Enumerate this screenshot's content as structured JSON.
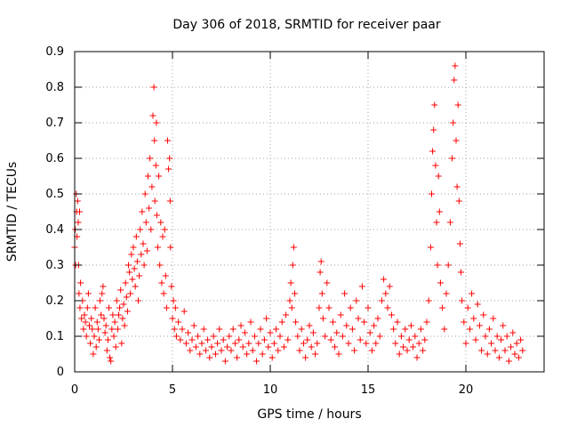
{
  "chart_data": {
    "type": "scatter",
    "title": "Day 306 of 2018, SRMTID for receiver paar",
    "xlabel": "GPS time / hours",
    "ylabel": "SRMTID / TECUs",
    "xlim": [
      0,
      24
    ],
    "ylim": [
      0,
      0.9
    ],
    "x_ticks": [
      0,
      5,
      10,
      15,
      20
    ],
    "x_tick_labels": [
      "0",
      "5",
      "10",
      "15",
      "20"
    ],
    "y_ticks": [
      0,
      0.1,
      0.2,
      0.3,
      0.4,
      0.5,
      0.6,
      0.7,
      0.8,
      0.9
    ],
    "y_tick_labels": [
      "0",
      "0.1",
      "0.2",
      "0.3",
      "0.4",
      "0.5",
      "0.6",
      "0.7",
      "0.8",
      "0.9"
    ],
    "grid": true,
    "marker": "+",
    "series_color": "#ff0000",
    "series": [
      {
        "name": "SRMTID",
        "points": [
          [
            0.0,
            0.35
          ],
          [
            0.03,
            0.4
          ],
          [
            0.05,
            0.3
          ],
          [
            0.08,
            0.5
          ],
          [
            0.1,
            0.45
          ],
          [
            0.12,
            0.38
          ],
          [
            0.15,
            0.48
          ],
          [
            0.18,
            0.42
          ],
          [
            0.2,
            0.3
          ],
          [
            0.22,
            0.22
          ],
          [
            0.25,
            0.45
          ],
          [
            0.27,
            0.18
          ],
          [
            0.3,
            0.25
          ],
          [
            0.35,
            0.15
          ],
          [
            0.4,
            0.2
          ],
          [
            0.45,
            0.12
          ],
          [
            0.5,
            0.16
          ],
          [
            0.55,
            0.14
          ],
          [
            0.6,
            0.1
          ],
          [
            0.65,
            0.18
          ],
          [
            0.7,
            0.22
          ],
          [
            0.75,
            0.13
          ],
          [
            0.8,
            0.08
          ],
          [
            0.85,
            0.15
          ],
          [
            0.9,
            0.12
          ],
          [
            0.95,
            0.05
          ],
          [
            1.0,
            0.1
          ],
          [
            1.05,
            0.18
          ],
          [
            1.1,
            0.07
          ],
          [
            1.15,
            0.14
          ],
          [
            1.2,
            0.12
          ],
          [
            1.25,
            0.09
          ],
          [
            1.3,
            0.2
          ],
          [
            1.35,
            0.16
          ],
          [
            1.4,
            0.22
          ],
          [
            1.45,
            0.24
          ],
          [
            1.5,
            0.15
          ],
          [
            1.55,
            0.11
          ],
          [
            1.6,
            0.13
          ],
          [
            1.65,
            0.06
          ],
          [
            1.7,
            0.09
          ],
          [
            1.75,
            0.18
          ],
          [
            1.8,
            0.04
          ],
          [
            1.85,
            0.03
          ],
          [
            1.9,
            0.12
          ],
          [
            1.95,
            0.16
          ],
          [
            2.0,
            0.1
          ],
          [
            2.05,
            0.14
          ],
          [
            2.1,
            0.07
          ],
          [
            2.15,
            0.2
          ],
          [
            2.2,
            0.12
          ],
          [
            2.25,
            0.16
          ],
          [
            2.3,
            0.18
          ],
          [
            2.35,
            0.23
          ],
          [
            2.4,
            0.08
          ],
          [
            2.45,
            0.15
          ],
          [
            2.5,
            0.19
          ],
          [
            2.55,
            0.13
          ],
          [
            2.6,
            0.25
          ],
          [
            2.65,
            0.21
          ],
          [
            2.7,
            0.17
          ],
          [
            2.75,
            0.3
          ],
          [
            2.8,
            0.28
          ],
          [
            2.85,
            0.22
          ],
          [
            2.9,
            0.33
          ],
          [
            2.95,
            0.26
          ],
          [
            3.0,
            0.35
          ],
          [
            3.05,
            0.29
          ],
          [
            3.1,
            0.24
          ],
          [
            3.15,
            0.38
          ],
          [
            3.2,
            0.31
          ],
          [
            3.25,
            0.2
          ],
          [
            3.3,
            0.27
          ],
          [
            3.35,
            0.4
          ],
          [
            3.4,
            0.33
          ],
          [
            3.45,
            0.45
          ],
          [
            3.5,
            0.36
          ],
          [
            3.55,
            0.3
          ],
          [
            3.6,
            0.5
          ],
          [
            3.65,
            0.42
          ],
          [
            3.7,
            0.34
          ],
          [
            3.75,
            0.55
          ],
          [
            3.8,
            0.46
          ],
          [
            3.85,
            0.6
          ],
          [
            3.9,
            0.4
          ],
          [
            3.95,
            0.52
          ],
          [
            4.0,
            0.72
          ],
          [
            4.05,
            0.8
          ],
          [
            4.08,
            0.65
          ],
          [
            4.1,
            0.48
          ],
          [
            4.15,
            0.58
          ],
          [
            4.18,
            0.7
          ],
          [
            4.2,
            0.44
          ],
          [
            4.25,
            0.35
          ],
          [
            4.3,
            0.55
          ],
          [
            4.35,
            0.3
          ],
          [
            4.4,
            0.42
          ],
          [
            4.45,
            0.25
          ],
          [
            4.5,
            0.38
          ],
          [
            4.55,
            0.22
          ],
          [
            4.6,
            0.4
          ],
          [
            4.65,
            0.27
          ],
          [
            4.7,
            0.18
          ],
          [
            4.75,
            0.65
          ],
          [
            4.8,
            0.57
          ],
          [
            4.85,
            0.6
          ],
          [
            4.88,
            0.48
          ],
          [
            4.9,
            0.35
          ],
          [
            4.95,
            0.24
          ],
          [
            5.0,
            0.15
          ],
          [
            5.05,
            0.2
          ],
          [
            5.1,
            0.12
          ],
          [
            5.15,
            0.18
          ],
          [
            5.2,
            0.1
          ],
          [
            5.3,
            0.14
          ],
          [
            5.4,
            0.09
          ],
          [
            5.5,
            0.12
          ],
          [
            5.6,
            0.17
          ],
          [
            5.7,
            0.08
          ],
          [
            5.8,
            0.11
          ],
          [
            5.9,
            0.06
          ],
          [
            6.0,
            0.09
          ],
          [
            6.1,
            0.13
          ],
          [
            6.2,
            0.07
          ],
          [
            6.3,
            0.1
          ],
          [
            6.4,
            0.05
          ],
          [
            6.5,
            0.08
          ],
          [
            6.6,
            0.12
          ],
          [
            6.7,
            0.06
          ],
          [
            6.8,
            0.09
          ],
          [
            6.9,
            0.04
          ],
          [
            7.0,
            0.07
          ],
          [
            7.1,
            0.1
          ],
          [
            7.2,
            0.05
          ],
          [
            7.3,
            0.08
          ],
          [
            7.4,
            0.12
          ],
          [
            7.5,
            0.06
          ],
          [
            7.6,
            0.09
          ],
          [
            7.7,
            0.03
          ],
          [
            7.8,
            0.07
          ],
          [
            7.9,
            0.1
          ],
          [
            8.0,
            0.06
          ],
          [
            8.1,
            0.12
          ],
          [
            8.2,
            0.08
          ],
          [
            8.3,
            0.04
          ],
          [
            8.4,
            0.09
          ],
          [
            8.5,
            0.13
          ],
          [
            8.6,
            0.07
          ],
          [
            8.7,
            0.11
          ],
          [
            8.8,
            0.05
          ],
          [
            8.9,
            0.08
          ],
          [
            9.0,
            0.14
          ],
          [
            9.1,
            0.06
          ],
          [
            9.2,
            0.1
          ],
          [
            9.3,
            0.03
          ],
          [
            9.4,
            0.08
          ],
          [
            9.5,
            0.12
          ],
          [
            9.6,
            0.05
          ],
          [
            9.7,
            0.09
          ],
          [
            9.8,
            0.15
          ],
          [
            9.9,
            0.07
          ],
          [
            10.0,
            0.11
          ],
          [
            10.1,
            0.04
          ],
          [
            10.2,
            0.08
          ],
          [
            10.3,
            0.12
          ],
          [
            10.4,
            0.06
          ],
          [
            10.5,
            0.1
          ],
          [
            10.6,
            0.14
          ],
          [
            10.7,
            0.07
          ],
          [
            10.8,
            0.16
          ],
          [
            10.9,
            0.09
          ],
          [
            11.0,
            0.2
          ],
          [
            11.05,
            0.25
          ],
          [
            11.1,
            0.18
          ],
          [
            11.15,
            0.3
          ],
          [
            11.2,
            0.35
          ],
          [
            11.25,
            0.22
          ],
          [
            11.3,
            0.14
          ],
          [
            11.4,
            0.1
          ],
          [
            11.5,
            0.06
          ],
          [
            11.6,
            0.12
          ],
          [
            11.7,
            0.08
          ],
          [
            11.8,
            0.04
          ],
          [
            11.9,
            0.09
          ],
          [
            12.0,
            0.13
          ],
          [
            12.1,
            0.07
          ],
          [
            12.2,
            0.11
          ],
          [
            12.3,
            0.05
          ],
          [
            12.4,
            0.08
          ],
          [
            12.5,
            0.18
          ],
          [
            12.55,
            0.28
          ],
          [
            12.6,
            0.31
          ],
          [
            12.65,
            0.22
          ],
          [
            12.7,
            0.15
          ],
          [
            12.8,
            0.1
          ],
          [
            12.9,
            0.25
          ],
          [
            13.0,
            0.18
          ],
          [
            13.1,
            0.09
          ],
          [
            13.2,
            0.14
          ],
          [
            13.3,
            0.07
          ],
          [
            13.4,
            0.11
          ],
          [
            13.5,
            0.05
          ],
          [
            13.6,
            0.16
          ],
          [
            13.7,
            0.1
          ],
          [
            13.8,
            0.22
          ],
          [
            13.9,
            0.13
          ],
          [
            14.0,
            0.08
          ],
          [
            14.1,
            0.18
          ],
          [
            14.2,
            0.12
          ],
          [
            14.3,
            0.06
          ],
          [
            14.4,
            0.2
          ],
          [
            14.5,
            0.15
          ],
          [
            14.6,
            0.09
          ],
          [
            14.7,
            0.24
          ],
          [
            14.8,
            0.14
          ],
          [
            14.9,
            0.08
          ],
          [
            15.0,
            0.18
          ],
          [
            15.1,
            0.11
          ],
          [
            15.2,
            0.06
          ],
          [
            15.3,
            0.13
          ],
          [
            15.4,
            0.08
          ],
          [
            15.5,
            0.15
          ],
          [
            15.6,
            0.1
          ],
          [
            15.7,
            0.2
          ],
          [
            15.8,
            0.26
          ],
          [
            15.9,
            0.22
          ],
          [
            16.0,
            0.18
          ],
          [
            16.1,
            0.24
          ],
          [
            16.2,
            0.16
          ],
          [
            16.3,
            0.12
          ],
          [
            16.4,
            0.08
          ],
          [
            16.5,
            0.14
          ],
          [
            16.6,
            0.05
          ],
          [
            16.7,
            0.1
          ],
          [
            16.8,
            0.07
          ],
          [
            16.9,
            0.12
          ],
          [
            17.0,
            0.06
          ],
          [
            17.1,
            0.09
          ],
          [
            17.2,
            0.13
          ],
          [
            17.3,
            0.07
          ],
          [
            17.4,
            0.1
          ],
          [
            17.5,
            0.04
          ],
          [
            17.6,
            0.08
          ],
          [
            17.7,
            0.12
          ],
          [
            17.8,
            0.06
          ],
          [
            17.9,
            0.09
          ],
          [
            18.0,
            0.14
          ],
          [
            18.1,
            0.2
          ],
          [
            18.2,
            0.35
          ],
          [
            18.25,
            0.5
          ],
          [
            18.3,
            0.62
          ],
          [
            18.35,
            0.68
          ],
          [
            18.4,
            0.75
          ],
          [
            18.45,
            0.58
          ],
          [
            18.5,
            0.42
          ],
          [
            18.55,
            0.3
          ],
          [
            18.6,
            0.55
          ],
          [
            18.65,
            0.45
          ],
          [
            18.7,
            0.25
          ],
          [
            18.8,
            0.18
          ],
          [
            18.9,
            0.12
          ],
          [
            19.0,
            0.22
          ],
          [
            19.1,
            0.3
          ],
          [
            19.2,
            0.42
          ],
          [
            19.3,
            0.6
          ],
          [
            19.35,
            0.7
          ],
          [
            19.4,
            0.82
          ],
          [
            19.45,
            0.86
          ],
          [
            19.5,
            0.65
          ],
          [
            19.55,
            0.52
          ],
          [
            19.6,
            0.75
          ],
          [
            19.65,
            0.48
          ],
          [
            19.7,
            0.36
          ],
          [
            19.75,
            0.28
          ],
          [
            19.8,
            0.2
          ],
          [
            19.9,
            0.14
          ],
          [
            20.0,
            0.08
          ],
          [
            20.1,
            0.18
          ],
          [
            20.2,
            0.12
          ],
          [
            20.3,
            0.22
          ],
          [
            20.4,
            0.15
          ],
          [
            20.5,
            0.09
          ],
          [
            20.6,
            0.19
          ],
          [
            20.7,
            0.13
          ],
          [
            20.8,
            0.06
          ],
          [
            20.9,
            0.16
          ],
          [
            21.0,
            0.1
          ],
          [
            21.1,
            0.05
          ],
          [
            21.2,
            0.12
          ],
          [
            21.3,
            0.08
          ],
          [
            21.4,
            0.15
          ],
          [
            21.5,
            0.06
          ],
          [
            21.6,
            0.1
          ],
          [
            21.7,
            0.04
          ],
          [
            21.8,
            0.09
          ],
          [
            21.9,
            0.13
          ],
          [
            22.0,
            0.06
          ],
          [
            22.1,
            0.1
          ],
          [
            22.2,
            0.03
          ],
          [
            22.3,
            0.07
          ],
          [
            22.4,
            0.11
          ],
          [
            22.5,
            0.05
          ],
          [
            22.6,
            0.08
          ],
          [
            22.7,
            0.04
          ],
          [
            22.8,
            0.09
          ],
          [
            22.9,
            0.06
          ]
        ]
      }
    ]
  }
}
